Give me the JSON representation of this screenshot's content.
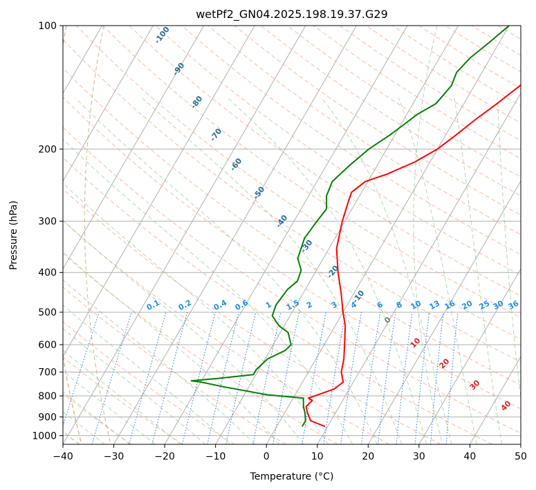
{
  "chart_data": {
    "type": "line",
    "subtype": "skew-t log-p",
    "title": "wetPf2_GN04.2025.198.19.37.G29",
    "xlabel": "Temperature (°C)",
    "ylabel": "Pressure (hPa)",
    "xlim": [
      -40,
      50
    ],
    "ylim": [
      1050,
      100
    ],
    "y_scale": "log",
    "grid": true,
    "x_ticks": [
      "−40",
      "−30",
      "−20",
      "−10",
      "0",
      "10",
      "20",
      "30",
      "40",
      "50"
    ],
    "y_ticks": [
      "100",
      "200",
      "300",
      "400",
      "500",
      "600",
      "700",
      "800",
      "900",
      "1000"
    ],
    "series": [
      {
        "color": "#ff0000",
        "points": [
          [
            9.5,
            950
          ],
          [
            6,
            920
          ],
          [
            4.5,
            880
          ],
          [
            3.5,
            850
          ],
          [
            4,
            820
          ],
          [
            3,
            810
          ],
          [
            7,
            770
          ],
          [
            8,
            740
          ],
          [
            6.5,
            700
          ],
          [
            5.5,
            650
          ],
          [
            4,
            600
          ],
          [
            2,
            540
          ],
          [
            0,
            500
          ],
          [
            -2.5,
            450
          ],
          [
            -5.5,
            400
          ],
          [
            -8.5,
            350
          ],
          [
            -10.5,
            300
          ],
          [
            -11.5,
            270
          ],
          [
            -12,
            255
          ],
          [
            -10.5,
            240
          ],
          [
            -7,
            230
          ],
          [
            -3,
            215
          ],
          [
            0,
            200
          ],
          [
            2,
            185
          ],
          [
            4,
            170
          ],
          [
            6.5,
            155
          ],
          [
            9,
            140
          ],
          [
            10.5,
            130
          ],
          [
            12.5,
            120
          ],
          [
            14.5,
            110
          ],
          [
            15.5,
            100
          ]
        ]
      },
      {
        "color": "#008000",
        "points": [
          [
            5,
            950
          ],
          [
            5,
            920
          ],
          [
            4,
            880
          ],
          [
            3,
            850
          ],
          [
            2,
            810
          ],
          [
            -5.5,
            795
          ],
          [
            -15,
            760
          ],
          [
            -20,
            740
          ],
          [
            -22,
            735
          ],
          [
            -17,
            725
          ],
          [
            -10.5,
            710
          ],
          [
            -10.5,
            690
          ],
          [
            -9.5,
            650
          ],
          [
            -7,
            620
          ],
          [
            -6.5,
            600
          ],
          [
            -8.5,
            560
          ],
          [
            -11,
            540
          ],
          [
            -13.5,
            510
          ],
          [
            -14,
            480
          ],
          [
            -13.5,
            440
          ],
          [
            -12.5,
            420
          ],
          [
            -13,
            395
          ],
          [
            -15,
            370
          ],
          [
            -16,
            330
          ],
          [
            -15.5,
            300
          ],
          [
            -15,
            280
          ],
          [
            -16.5,
            260
          ],
          [
            -17,
            240
          ],
          [
            -15.5,
            220
          ],
          [
            -13.5,
            200
          ],
          [
            -11,
            185
          ],
          [
            -9.5,
            175
          ],
          [
            -8,
            165
          ],
          [
            -5.5,
            155
          ],
          [
            -4.5,
            140
          ],
          [
            -5,
            130
          ],
          [
            -4,
            120
          ],
          [
            -2,
            110
          ],
          [
            0,
            100
          ]
        ]
      }
    ],
    "mixing_ratio_labels": [
      "0.1",
      "0.2",
      "0.4",
      "0.6",
      "1",
      "1.5",
      "2",
      "3",
      "4",
      "6",
      "8",
      "10",
      "13",
      "16",
      "20",
      "25",
      "30",
      "36"
    ],
    "isotherm_labels": [
      "-100",
      "-90",
      "-80",
      "-70",
      "-60",
      "-50",
      "-40",
      "-30",
      "-20",
      "-10"
    ],
    "moist_adiabat_labels": [
      "0",
      "10",
      "20",
      "30",
      "40"
    ]
  }
}
